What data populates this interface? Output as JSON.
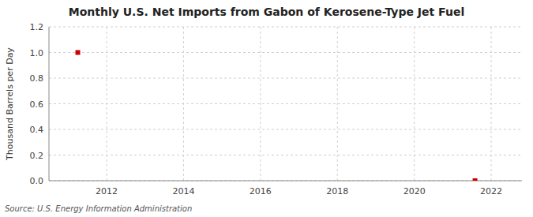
{
  "chart_data": {
    "type": "scatter",
    "title": "Monthly U.S. Net Imports from Gabon of Kerosene-Type Jet Fuel",
    "ylabel": "Thousand Barrels per Day",
    "source": "Source: U.S. Energy Information Administration",
    "x": [
      2011.25,
      2021.58
    ],
    "values": [
      1.0,
      0.0
    ],
    "color": "#CC0000",
    "marker": "square",
    "xlim": [
      2010.5,
      2022.8
    ],
    "ylim": [
      0.0,
      1.2
    ],
    "xticks": [
      2012,
      2014,
      2016,
      2018,
      2020,
      2022
    ],
    "yticks": [
      {
        "value": 0.0,
        "label": "0.0"
      },
      0.2,
      0.4,
      0.6,
      0.8,
      {
        "value": 1.0,
        "label": "1.0"
      },
      1.2
    ],
    "grid": true
  }
}
